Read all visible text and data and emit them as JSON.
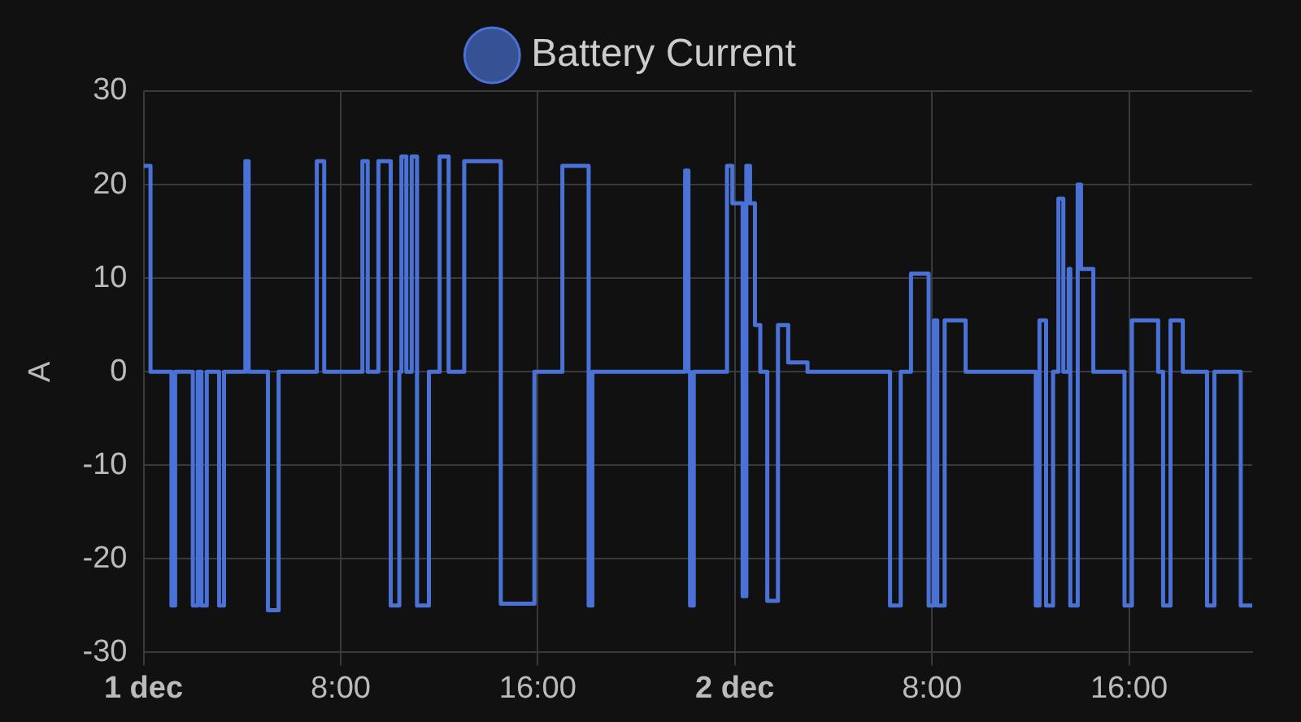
{
  "chart_data": {
    "type": "step",
    "ylabel": "A",
    "legend": "top",
    "grid": true,
    "marker": "none",
    "line_style": "solid",
    "xlim": [
      "--12-01T00:00",
      "--12-02T21:00"
    ],
    "xticks": [
      {
        "value": "--12-01T00:00",
        "label": "1 dec"
      },
      {
        "value": "--12-01T08:00",
        "label": "8:00"
      },
      {
        "value": "--12-01T16:00",
        "label": "16:00"
      },
      {
        "value": "--12-02T00:00",
        "label": "2 dec"
      },
      {
        "value": "--12-02T08:00",
        "label": "8:00"
      },
      {
        "value": "--12-02T16:00",
        "label": "16:00"
      }
    ],
    "ylim": [
      -30,
      30
    ],
    "yticks": [
      -30,
      -20,
      -10,
      0,
      10,
      20,
      30
    ],
    "x": [
      "--12-01T00:00",
      "--12-01T00:17",
      "--12-01T01:08",
      "--12-01T01:17",
      "--12-01T02:00",
      "--12-01T02:12",
      "--12-01T02:21",
      "--12-01T02:34",
      "--12-01T03:04",
      "--12-01T03:16",
      "--12-01T04:08",
      "--12-01T04:16",
      "--12-01T05:03",
      "--12-01T05:29",
      "--12-01T07:02",
      "--12-01T07:20",
      "--12-01T08:53",
      "--12-01T09:06",
      "--12-01T09:32",
      "--12-01T10:02",
      "--12-01T10:23",
      "--12-01T10:28",
      "--12-01T10:40",
      "--12-01T10:53",
      "--12-01T11:06",
      "--12-01T11:35",
      "--12-01T12:01",
      "--12-01T12:23",
      "--12-01T13:01",
      "--12-01T14:30",
      "--12-01T15:52",
      "--12-01T17:00",
      "--12-01T18:04",
      "--12-01T18:13",
      "--12-01T21:59",
      "--12-01T22:07",
      "--12-01T22:11",
      "--12-01T22:20",
      "--12-01T23:41",
      "--12-01T23:54",
      "--12-02T00:19",
      "--12-02T00:28",
      "--12-02T00:37",
      "--12-02T00:49",
      "--12-02T01:02",
      "--12-02T01:19",
      "--12-02T01:45",
      "--12-02T02:10",
      "--12-02T02:57",
      "--12-02T06:18",
      "--12-02T06:44",
      "--12-02T07:09",
      "--12-02T07:52",
      "--12-02T08:05",
      "--12-02T08:13",
      "--12-02T08:31",
      "--12-02T09:22",
      "--12-02T12:13",
      "--12-02T12:22",
      "--12-02T12:38",
      "--12-02T12:55",
      "--12-02T13:08",
      "--12-02T13:20",
      "--12-02T13:33",
      "--12-02T13:37",
      "--12-02T13:55",
      "--12-02T14:03",
      "--12-02T14:33",
      "--12-02T15:49",
      "--12-02T16:07",
      "--12-02T17:11",
      "--12-02T17:23",
      "--12-02T17:41",
      "--12-02T18:11",
      "--12-02T19:10",
      "--12-02T19:28",
      "--12-02T20:32",
      "--12-02T21:00"
    ],
    "series": [
      {
        "name": "Battery Current",
        "color": "#4a72d6",
        "values": [
          22,
          0,
          -25,
          0,
          -25,
          0,
          -25,
          0,
          -25,
          0,
          22.5,
          0,
          -25.5,
          0,
          22.5,
          0,
          22.5,
          0,
          22.5,
          -25,
          0,
          23,
          0,
          23,
          -25,
          0,
          23,
          0,
          22.5,
          -24.8,
          0,
          22,
          -25,
          0,
          21.5,
          0,
          -25,
          0,
          22,
          18,
          -24,
          22,
          18,
          5,
          0,
          -24.5,
          5,
          1,
          0,
          -25,
          0,
          10.5,
          -25,
          5.5,
          -25,
          5.5,
          0,
          -25,
          5.5,
          -25,
          0,
          18.5,
          0,
          11,
          -25,
          20,
          11,
          0,
          -25,
          5.5,
          0,
          -25,
          5.5,
          0,
          -25,
          0,
          -25,
          -25
        ]
      }
    ]
  }
}
